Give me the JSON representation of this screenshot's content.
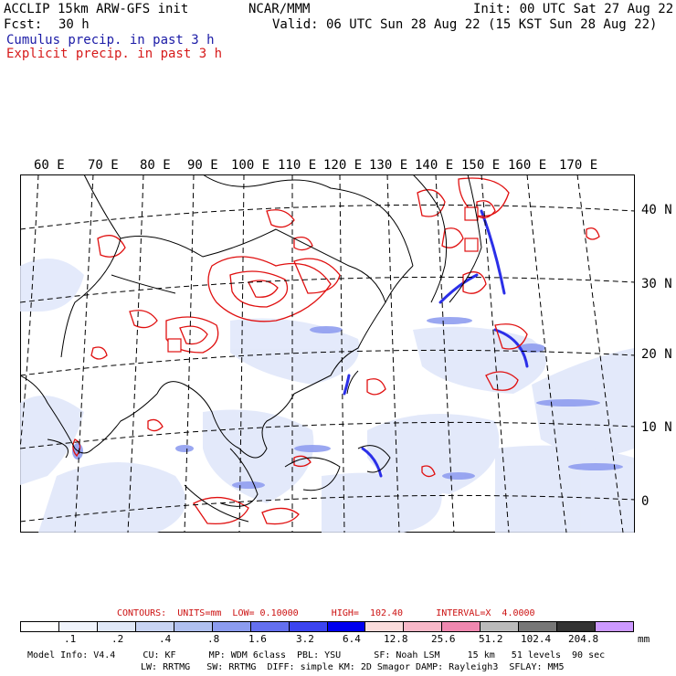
{
  "header": {
    "model": "ACCLIP 15km ARW-GFS init",
    "center": "NCAR/MMM",
    "init": "Init: 00 UTC Sat 27 Aug 22",
    "fcst_label": "Fcst:",
    "fcst_value": "30 h",
    "valid": "Valid: 06 UTC Sun 28 Aug 22 (15 KST Sun 28 Aug 22)",
    "cumulus": "Cumulus precip. in past 3 h",
    "explicit": "Explicit precip. in past 3 h"
  },
  "longitude_labels": [
    "60 E",
    "70 E",
    "80 E",
    "90 E",
    "100 E",
    "110 E",
    "120 E",
    "130 E",
    "140 E",
    "150 E",
    "160 E",
    "170 E"
  ],
  "latitude_labels": [
    "40 N",
    "30 N",
    "20 N",
    "10 N",
    "0"
  ],
  "colors": {
    "cumulus_text": "#1a1aa6",
    "explicit_text": "#d61a1a",
    "explicit_contour": "#e01010"
  },
  "contours": {
    "text": "CONTOURS:  UNITS=mm  LOW= 0.10000      HIGH=  102.40      INTERVAL=X  4.0000"
  },
  "color_scale": {
    "colors": [
      "#ffffff",
      "#f0f4fc",
      "#e0e8f8",
      "#c8d4f4",
      "#b0c0f0",
      "#8c9cf0",
      "#6470f0",
      "#3c44f0",
      "#0000ee",
      "#fadcdc",
      "#f8b8c8",
      "#f088b0",
      "#bbbbbb",
      "#777777",
      "#333333",
      "#cc99ff"
    ],
    "tick_labels": [
      ".1",
      ".2",
      ".4",
      ".8",
      "1.6",
      "3.2",
      "6.4",
      "12.8",
      "25.6",
      "51.2",
      "102.4",
      "204.8"
    ],
    "units": "mm"
  },
  "footer": {
    "line1": "Model Info: V4.4     CU: KF      MP: WDM 6class  PBL: YSU      SF: Noah LSM     15 km   51 levels  90 sec",
    "line2": "LW: RRTMG   SW: RRTMG  DIFF: simple KM: 2D Smagor DAMP: Rayleigh3  SFLAY: MM5"
  }
}
